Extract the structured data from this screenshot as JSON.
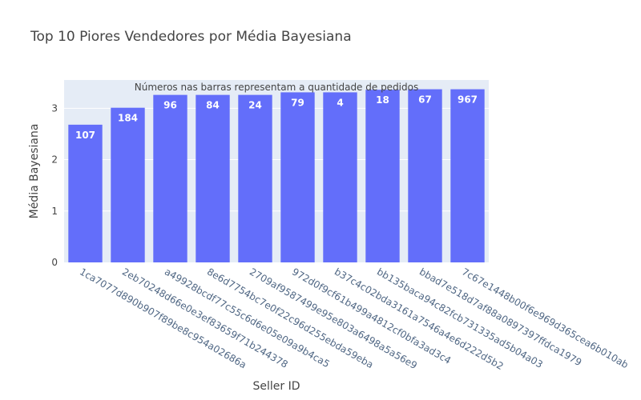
{
  "chart_data": {
    "type": "bar",
    "title": "Top 10 Piores Vendedores por Média Bayesiana",
    "xlabel": "Seller ID",
    "ylabel": "Média Bayesiana",
    "annotation": "Números nas barras representam a quantidade de pedidos",
    "ylim": [
      0,
      3.55
    ],
    "yticks": [
      0,
      1,
      2,
      3
    ],
    "grid": true,
    "bar_color": "#636efa",
    "plot_bg": "#e5ecf6",
    "categories": [
      "1ca7077d890b907f89be8c954a02686a",
      "2eb70248d66e0e3ef83659f71b244378",
      "a49928bcdf77c55c6d6e05e09a9b4ca5",
      "8e6d7754bc7e0f22c96d255ebda59eba",
      "2709af9587499e95e803a6498a5a56e9",
      "972d0f9cf61b499a4812cf0bfa3ad3c4",
      "b37c4c02bda3161a7546a4e6d222d5b2",
      "bb135baca94c82fcb731335ad5b04a03",
      "bbad7e518d7af88a0897397ffdca1979",
      "7c67e1448b00f6e969d365cea6b010ab"
    ],
    "values": [
      2.68,
      3.01,
      3.26,
      3.26,
      3.26,
      3.31,
      3.31,
      3.36,
      3.37,
      3.37
    ],
    "bar_labels": [
      "107",
      "184",
      "96",
      "84",
      "24",
      "79",
      "4",
      "18",
      "67",
      "967"
    ]
  }
}
